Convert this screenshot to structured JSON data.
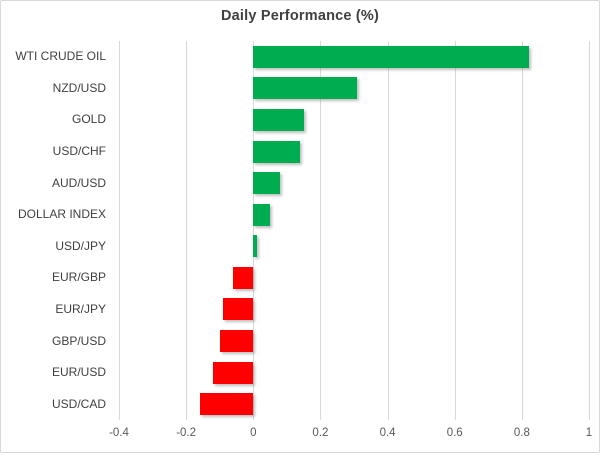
{
  "title": "Daily Performance (%)",
  "colors": {
    "positive_bar": "#00AC50",
    "negative_bar": "#FF0000",
    "gridline": "#D9D9D9",
    "chart_border": "#D9D9D9",
    "title_text": "#404040",
    "category_text": "#404040",
    "tick_text": "#595959",
    "background": "#FFFFFF"
  },
  "chart_data": {
    "type": "bar",
    "orientation": "horizontal",
    "title": "Daily Performance (%)",
    "categories": [
      "WTI CRUDE OIL",
      "NZD/USD",
      "GOLD",
      "USD/CHF",
      "AUD/USD",
      "DOLLAR INDEX",
      "USD/JPY",
      "EUR/GBP",
      "EUR/JPY",
      "GBP/USD",
      "EUR/USD",
      "USD/CAD"
    ],
    "values": [
      0.82,
      0.31,
      0.15,
      0.14,
      0.08,
      0.05,
      0.01,
      -0.06,
      -0.09,
      -0.1,
      -0.12,
      -0.16
    ],
    "series_name": "Daily Performance (%)",
    "xlabel": "",
    "ylabel": "",
    "xlim": [
      -0.4,
      1.0
    ],
    "x_ticks": [
      -0.4,
      -0.2,
      0,
      0.2,
      0.4,
      0.6,
      0.8,
      1
    ],
    "x_tick_labels": [
      "-0.4",
      "-0.2",
      "0",
      "0.2",
      "0.4",
      "0.6",
      "0.8",
      "1"
    ],
    "grid": true,
    "legend": false,
    "value_sign_colors": {
      "positive": "green",
      "negative": "red"
    }
  }
}
